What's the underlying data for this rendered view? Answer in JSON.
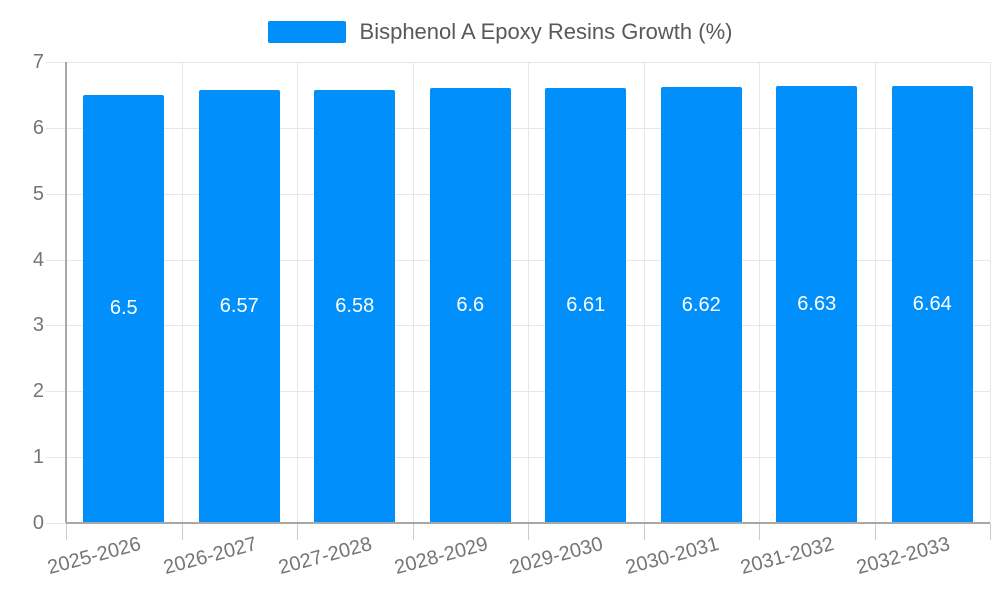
{
  "legend": {
    "label": "Bisphenol A Epoxy Resins Growth (%)"
  },
  "colors": {
    "bar": "#008FFB",
    "grid": "#e6e6e6",
    "y_tick": "#e6e6e6",
    "x_tick": "#cccccc",
    "axis": "#a8a8a8",
    "axis_label_text": "#757575",
    "legend_text": "#595959",
    "value_label_text": "#ffffff",
    "background": "#ffffff"
  },
  "chart_data": {
    "type": "bar",
    "title": "",
    "xlabel": "",
    "ylabel": "",
    "categories": [
      "2025-2026",
      "2026-2027",
      "2027-2028",
      "2028-2029",
      "2029-2030",
      "2030-2031",
      "2031-2032",
      "2032-2033"
    ],
    "series": [
      {
        "name": "Bisphenol A Epoxy Resins Growth (%)",
        "values": [
          6.5,
          6.57,
          6.58,
          6.6,
          6.61,
          6.62,
          6.63,
          6.64
        ]
      }
    ],
    "value_labels": [
      "6.5",
      "6.57",
      "6.58",
      "6.6",
      "6.61",
      "6.62",
      "6.63",
      "6.64"
    ],
    "ylim": [
      0,
      7
    ],
    "yticks": [
      "0",
      "1",
      "2",
      "3",
      "4",
      "5",
      "6",
      "7"
    ],
    "grid": true,
    "legend_position": "top",
    "x_label_rotation_deg": -15,
    "value_label_position": "center-inside"
  }
}
